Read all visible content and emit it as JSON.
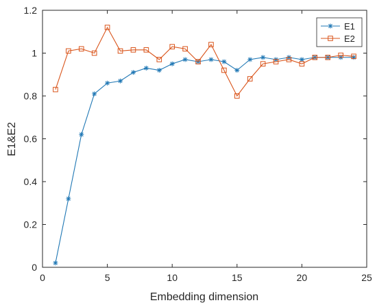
{
  "chart_data": {
    "type": "line",
    "xlabel": "Embedding dimension",
    "ylabel": "E1&E2",
    "xlim": [
      0,
      25
    ],
    "ylim": [
      0,
      1.2
    ],
    "xticks": [
      "0",
      "5",
      "10",
      "15",
      "20",
      "25"
    ],
    "yticks": [
      "0",
      "0.2",
      "0.4",
      "0.6",
      "0.8",
      "1",
      "1.2"
    ],
    "grid": false,
    "legend_position": "top-right",
    "x": [
      1,
      2,
      3,
      4,
      5,
      6,
      7,
      8,
      9,
      10,
      11,
      12,
      13,
      14,
      15,
      16,
      17,
      18,
      19,
      20,
      21,
      22,
      23,
      24
    ],
    "series": [
      {
        "name": "E1",
        "color": "#1f77b4",
        "marker": "asterisk",
        "values": [
          0.02,
          0.32,
          0.62,
          0.81,
          0.86,
          0.87,
          0.91,
          0.93,
          0.92,
          0.95,
          0.97,
          0.96,
          0.97,
          0.96,
          0.92,
          0.97,
          0.98,
          0.97,
          0.98,
          0.97,
          0.98,
          0.98,
          0.98,
          0.98
        ]
      },
      {
        "name": "E2",
        "color": "#d95319",
        "marker": "square",
        "values": [
          0.83,
          1.01,
          1.02,
          1.0,
          1.12,
          1.01,
          1.015,
          1.015,
          0.97,
          1.03,
          1.02,
          0.96,
          1.04,
          0.92,
          0.8,
          0.88,
          0.95,
          0.96,
          0.97,
          0.95,
          0.98,
          0.98,
          0.99,
          0.985
        ]
      }
    ]
  }
}
